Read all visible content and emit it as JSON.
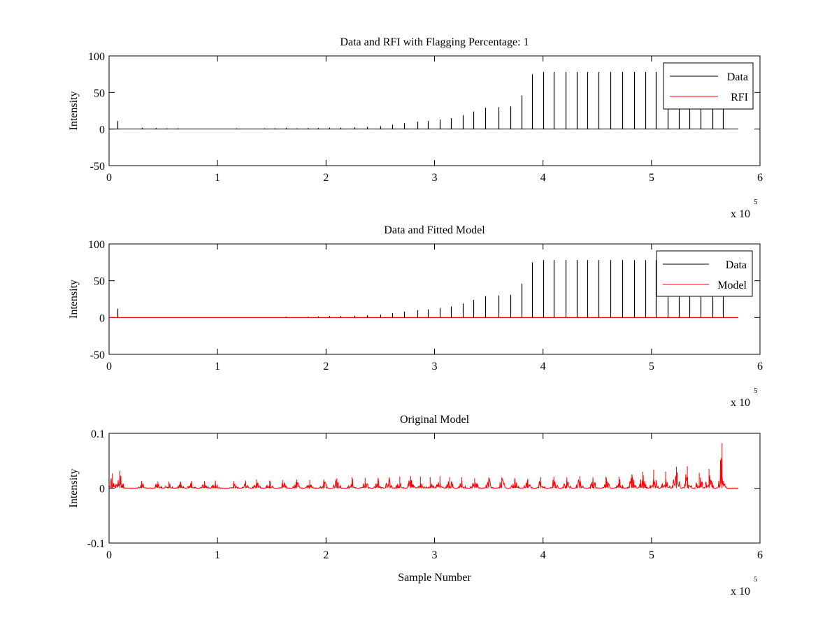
{
  "colors": {
    "background": "#ffffff",
    "data": "#000000",
    "rfi": "#ff0000",
    "model": "#ff0000",
    "axes": "#000000"
  },
  "chart_data": [
    {
      "type": "line",
      "title": "Data and RFI with Flagging Percentage: 1",
      "xlabel": "",
      "ylabel": "Intensity",
      "xlim": [
        0,
        600000
      ],
      "ylim": [
        -50,
        100
      ],
      "xticks": [
        "0",
        "1",
        "2",
        "3",
        "4",
        "5",
        "6"
      ],
      "yticks": [
        "100",
        "50",
        "0",
        "-50"
      ],
      "x_multiplier": {
        "base": "x 10",
        "exponent": "5"
      },
      "legend": {
        "position": "top-right",
        "entries": [
          "Data",
          "RFI"
        ]
      },
      "baseline": {
        "x_start": 0,
        "x_end": 580000,
        "y": 0
      },
      "series": [
        {
          "name": "Data",
          "color": "#000000",
          "spikes": [
            [
              8000,
              11
            ],
            [
              30000,
              1.5
            ],
            [
              43000,
              1.5
            ],
            [
              53000,
              1
            ],
            [
              63000,
              1
            ],
            [
              117000,
              1
            ],
            [
              143000,
              1
            ],
            [
              153000,
              1
            ],
            [
              163000,
              1.5
            ],
            [
              173000,
              1
            ],
            [
              183000,
              1.5
            ],
            [
              193000,
              1.5
            ],
            [
              203000,
              2
            ],
            [
              213000,
              2
            ],
            [
              226000,
              2.5
            ],
            [
              238000,
              3
            ],
            [
              250000,
              4
            ],
            [
              261000,
              6
            ],
            [
              272000,
              8
            ],
            [
              284000,
              10
            ],
            [
              294000,
              11
            ],
            [
              305000,
              13
            ],
            [
              315000,
              15
            ],
            [
              326000,
              19
            ],
            [
              336000,
              24
            ],
            [
              347000,
              29
            ],
            [
              359000,
              30
            ],
            [
              370000,
              31
            ],
            [
              380000,
              46
            ],
            [
              390000,
              75
            ],
            [
              400000,
              78
            ],
            [
              410000,
              78
            ],
            [
              421000,
              78
            ],
            [
              431000,
              78
            ],
            [
              441000,
              78
            ],
            [
              451000,
              78
            ],
            [
              462000,
              78
            ],
            [
              473000,
              78
            ],
            [
              484000,
              78
            ],
            [
              494000,
              78
            ],
            [
              504000,
              78
            ],
            [
              515000,
              78
            ],
            [
              525000,
              78
            ],
            [
              535000,
              78
            ],
            [
              545000,
              78
            ],
            [
              556000,
              78
            ],
            [
              566000,
              78
            ]
          ]
        },
        {
          "name": "RFI",
          "color": "#ff0000",
          "spikes": []
        }
      ]
    },
    {
      "type": "line",
      "title": "Data and Fitted Model",
      "xlabel": "",
      "ylabel": "Intensity",
      "xlim": [
        0,
        600000
      ],
      "ylim": [
        -50,
        100
      ],
      "xticks": [
        "0",
        "1",
        "2",
        "3",
        "4",
        "5",
        "6"
      ],
      "yticks": [
        "100",
        "50",
        "0",
        "-50"
      ],
      "x_multiplier": {
        "base": "x 10",
        "exponent": "5"
      },
      "legend": {
        "position": "top-right",
        "entries": [
          "Data",
          "Model"
        ]
      },
      "baseline": {
        "x_start": 0,
        "x_end": 580000,
        "y": 0
      },
      "series": [
        {
          "name": "Data",
          "color": "#000000",
          "spikes": [
            [
              8000,
              12
            ],
            [
              163000,
              1
            ],
            [
              183000,
              1
            ],
            [
              193000,
              1.5
            ],
            [
              203000,
              2
            ],
            [
              213000,
              2
            ],
            [
              226000,
              2.5
            ],
            [
              238000,
              3
            ],
            [
              250000,
              4
            ],
            [
              261000,
              6
            ],
            [
              272000,
              8
            ],
            [
              284000,
              10
            ],
            [
              294000,
              11
            ],
            [
              305000,
              13
            ],
            [
              315000,
              15
            ],
            [
              326000,
              19
            ],
            [
              336000,
              24
            ],
            [
              347000,
              29
            ],
            [
              359000,
              30
            ],
            [
              370000,
              31
            ],
            [
              380000,
              46
            ],
            [
              390000,
              75
            ],
            [
              400000,
              78
            ],
            [
              410000,
              78
            ],
            [
              421000,
              78
            ],
            [
              431000,
              78
            ],
            [
              441000,
              78
            ],
            [
              451000,
              78
            ],
            [
              462000,
              78
            ],
            [
              473000,
              78
            ],
            [
              484000,
              78
            ],
            [
              494000,
              78
            ],
            [
              504000,
              78
            ],
            [
              515000,
              78
            ],
            [
              525000,
              78
            ],
            [
              535000,
              78
            ],
            [
              545000,
              78
            ],
            [
              556000,
              78
            ],
            [
              566000,
              78
            ]
          ]
        },
        {
          "name": "Model",
          "color": "#ff0000",
          "spikes": []
        }
      ]
    },
    {
      "type": "line",
      "title": "Original Model",
      "xlabel": "Sample Number",
      "ylabel": "Intensity",
      "xlim": [
        0,
        600000
      ],
      "ylim": [
        -0.1,
        0.1
      ],
      "xticks": [
        "0",
        "1",
        "2",
        "3",
        "4",
        "5",
        "6"
      ],
      "yticks": [
        "0.1",
        "0",
        "-0.1"
      ],
      "x_multiplier": {
        "base": "x 10",
        "exponent": "5"
      },
      "baseline": {
        "x_start": 0,
        "x_end": 580000,
        "y": 0
      },
      "series": [
        {
          "name": "",
          "color": "#ff0000",
          "clusters": [
            [
              3000,
              0.027
            ],
            [
              10000,
              0.032
            ],
            [
              30000,
              0.013
            ],
            [
              45000,
              0.012
            ],
            [
              55000,
              0.012
            ],
            [
              66000,
              0.012
            ],
            [
              76000,
              0.013
            ],
            [
              88000,
              0.013
            ],
            [
              98000,
              0.014
            ],
            [
              115000,
              0.013
            ],
            [
              126000,
              0.014
            ],
            [
              136000,
              0.016
            ],
            [
              148000,
              0.014
            ],
            [
              160000,
              0.015
            ],
            [
              173000,
              0.016
            ],
            [
              185000,
              0.015
            ],
            [
              198000,
              0.016
            ],
            [
              210000,
              0.018
            ],
            [
              224000,
              0.02
            ],
            [
              236000,
              0.019
            ],
            [
              248000,
              0.019
            ],
            [
              258000,
              0.02
            ],
            [
              268000,
              0.021
            ],
            [
              278000,
              0.022
            ],
            [
              287000,
              0.021
            ],
            [
              296000,
              0.02
            ],
            [
              305000,
              0.022
            ],
            [
              314000,
              0.02
            ],
            [
              325000,
              0.02
            ],
            [
              337000,
              0.018
            ],
            [
              350000,
              0.02
            ],
            [
              362000,
              0.02
            ],
            [
              374000,
              0.018
            ],
            [
              386000,
              0.017
            ],
            [
              398000,
              0.02
            ],
            [
              410000,
              0.021
            ],
            [
              422000,
              0.02
            ],
            [
              434000,
              0.022
            ],
            [
              446000,
              0.02
            ],
            [
              458000,
              0.021
            ],
            [
              470000,
              0.021
            ],
            [
              482000,
              0.025
            ],
            [
              492000,
              0.03
            ],
            [
              502000,
              0.034
            ],
            [
              513000,
              0.03
            ],
            [
              523000,
              0.039
            ],
            [
              533000,
              0.04
            ],
            [
              544000,
              0.028
            ],
            [
              553000,
              0.035
            ],
            [
              565000,
              0.082
            ]
          ]
        }
      ]
    }
  ]
}
